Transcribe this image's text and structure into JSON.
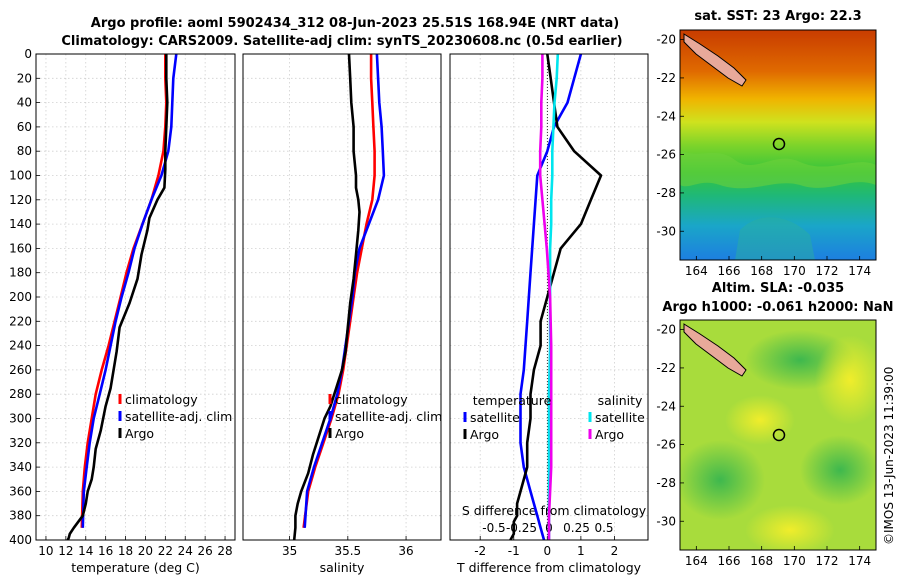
{
  "title_line1": "Argo profile: aoml 5902434_312 08-Jun-2023 25.51S 168.94E (NRT data)",
  "title_line2": "Climatology: CARS2009. Satellite-adj clim: synTS_20230608.nc (0.5d earlier)",
  "credit": "©IMOS 13-Jun-2023 11:39:00",
  "colors": {
    "climatology": "#ff0000",
    "satellite": "#0000ff",
    "argo": "#000000",
    "sat_salinity": "#00e5ee",
    "argo_salinity": "#ee00ee"
  },
  "chart_data": [
    {
      "type": "line",
      "name": "temperature",
      "xlabel": "temperature (deg C)",
      "ylabel": "",
      "xlim": [
        9,
        29
      ],
      "ylim": [
        400,
        0
      ],
      "xticks": [
        "10",
        "12",
        "14",
        "16",
        "18",
        "20",
        "22",
        "24",
        "26",
        "28"
      ],
      "xtick_values": [
        10,
        12,
        14,
        16,
        18,
        20,
        22,
        24,
        26,
        28
      ],
      "yticks": [
        "0",
        "20",
        "40",
        "60",
        "80",
        "100",
        "120",
        "140",
        "160",
        "180",
        "200",
        "220",
        "240",
        "260",
        "280",
        "300",
        "320",
        "340",
        "360",
        "380",
        "400"
      ],
      "ytick_values": [
        0,
        20,
        40,
        60,
        80,
        100,
        120,
        140,
        160,
        180,
        200,
        220,
        240,
        260,
        280,
        300,
        320,
        340,
        360,
        380,
        400
      ],
      "grid": true,
      "legend": [
        "climatology",
        "satellite-adj. clim",
        "Argo"
      ],
      "series": [
        {
          "name": "climatology",
          "x": [
            22.0,
            22.0,
            22.1,
            22.0,
            21.8,
            21.3,
            20.6,
            19.7,
            18.8,
            18.1,
            17.5,
            16.9,
            16.3,
            15.6,
            15.0,
            14.6,
            14.2,
            13.9,
            13.7,
            13.6
          ],
          "y": [
            0,
            20,
            40,
            60,
            80,
            100,
            120,
            140,
            160,
            180,
            200,
            220,
            240,
            260,
            280,
            300,
            320,
            340,
            360,
            390
          ]
        },
        {
          "name": "satellite-adj. clim",
          "x": [
            23.1,
            22.8,
            22.7,
            22.6,
            22.3,
            21.6,
            20.6,
            19.7,
            18.9,
            18.3,
            17.6,
            17.0,
            16.5,
            16.0,
            15.4,
            14.8,
            14.4,
            14.1,
            13.8,
            13.7
          ],
          "y": [
            0,
            20,
            40,
            60,
            80,
            100,
            120,
            140,
            160,
            180,
            200,
            220,
            240,
            260,
            280,
            300,
            320,
            340,
            360,
            390
          ]
        },
        {
          "name": "Argo",
          "x": [
            22.1,
            22.1,
            22.2,
            22.1,
            22.0,
            22.0,
            21.9,
            21.2,
            20.4,
            20.2,
            19.6,
            19.2,
            18.4,
            17.4,
            17.1,
            16.8,
            16.5,
            16.0,
            15.5,
            15.0,
            14.8,
            14.6,
            14.2,
            14.0,
            13.7,
            12.8,
            12.4,
            12.3,
            12.2
          ],
          "y": [
            0,
            20,
            40,
            60,
            80,
            95,
            110,
            120,
            135,
            145,
            165,
            185,
            205,
            225,
            245,
            260,
            275,
            290,
            310,
            325,
            340,
            350,
            360,
            370,
            380,
            390,
            395,
            398,
            400
          ]
        }
      ]
    },
    {
      "type": "line",
      "name": "salinity",
      "xlabel": "salinity",
      "ylabel": "",
      "xlim": [
        34.6,
        36.3
      ],
      "ylim": [
        400,
        0
      ],
      "xticks": [
        "35",
        "35.5",
        "36"
      ],
      "xtick_values": [
        35,
        35.5,
        36
      ],
      "grid": true,
      "legend": [
        "climatology",
        "satellite-adj. clim",
        "Argo"
      ],
      "series": [
        {
          "name": "climatology",
          "x": [
            35.7,
            35.7,
            35.71,
            35.72,
            35.73,
            35.73,
            35.71,
            35.66,
            35.62,
            35.58,
            35.55,
            35.52,
            35.49,
            35.46,
            35.42,
            35.36,
            35.29,
            35.22,
            35.16,
            35.12
          ],
          "y": [
            0,
            20,
            40,
            60,
            80,
            100,
            120,
            140,
            160,
            180,
            200,
            220,
            240,
            260,
            280,
            300,
            320,
            340,
            360,
            390
          ]
        },
        {
          "name": "satellite-adj. clim",
          "x": [
            35.75,
            35.76,
            35.77,
            35.79,
            35.8,
            35.81,
            35.76,
            35.68,
            35.6,
            35.56,
            35.54,
            35.51,
            35.48,
            35.45,
            35.41,
            35.35,
            35.28,
            35.21,
            35.15,
            35.13
          ],
          "y": [
            0,
            20,
            40,
            60,
            80,
            100,
            120,
            140,
            160,
            180,
            200,
            220,
            240,
            260,
            280,
            300,
            320,
            340,
            360,
            390
          ]
        },
        {
          "name": "Argo",
          "x": [
            35.51,
            35.52,
            35.53,
            35.55,
            35.55,
            35.57,
            35.57,
            35.59,
            35.6,
            35.59,
            35.57,
            35.55,
            35.52,
            35.5,
            35.48,
            35.45,
            35.4,
            35.35,
            35.3,
            35.25,
            35.2,
            35.16,
            35.1,
            35.07,
            35.05,
            35.05,
            35.04
          ],
          "y": [
            0,
            20,
            40,
            60,
            80,
            100,
            110,
            120,
            130,
            145,
            165,
            185,
            205,
            225,
            245,
            260,
            275,
            290,
            300,
            315,
            330,
            345,
            360,
            370,
            380,
            390,
            400
          ]
        }
      ]
    },
    {
      "type": "line",
      "name": "difference",
      "xlabel": "T difference from climatology",
      "x2label": "S difference from climatology",
      "xlim": [
        -2.9,
        3.0
      ],
      "ylim": [
        400,
        0
      ],
      "xticks": [
        "-2",
        "-1",
        "0",
        "1",
        "2"
      ],
      "xtick_values": [
        -2,
        -1,
        0,
        1,
        2
      ],
      "x2lim": [
        -0.9,
        0.9
      ],
      "x2ticks": [
        "-0.5",
        "-0.25",
        "0",
        "0.25",
        "0.5"
      ],
      "x2tick_values": [
        -0.5,
        -0.25,
        0,
        0.25,
        0.5
      ],
      "grid": true,
      "legend_left_title": "temperature",
      "legend_right_title": "salinity",
      "legend": [
        "satellite",
        "Argo",
        "satellite",
        "Argo"
      ],
      "series": [
        {
          "name": "temperature satellite",
          "axis": "T",
          "x": [
            1.0,
            0.8,
            0.6,
            0.4,
            0.2,
            0.0,
            -0.3,
            -0.4,
            -0.5,
            -0.6,
            -0.7,
            -0.8,
            -0.8,
            -0.8,
            -0.7,
            -0.6,
            -0.5,
            -0.4,
            -0.3,
            -0.2,
            -0.1
          ],
          "y": [
            0,
            20,
            40,
            50,
            60,
            80,
            100,
            140,
            180,
            220,
            260,
            280,
            300,
            320,
            340,
            350,
            360,
            370,
            380,
            390,
            400
          ]
        },
        {
          "name": "temperature Argo",
          "axis": "T",
          "x": [
            0.0,
            0.1,
            0.2,
            0.3,
            0.8,
            1.6,
            1.3,
            1.0,
            0.4,
            0.2,
            0.0,
            -0.2,
            -0.2,
            -0.4,
            -0.5,
            -0.5,
            -0.6,
            -0.6,
            -0.8,
            -0.9,
            -0.9,
            -1.0,
            -1.0,
            -1.1
          ],
          "y": [
            0,
            20,
            40,
            60,
            80,
            100,
            120,
            140,
            160,
            180,
            200,
            220,
            240,
            260,
            280,
            300,
            320,
            340,
            360,
            370,
            380,
            385,
            395,
            400
          ]
        },
        {
          "name": "salinity satellite",
          "axis": "S",
          "x": [
            0.08,
            0.07,
            0.05,
            0.04,
            0.03,
            0.03,
            0.02,
            0.02,
            0.01,
            0.01,
            0.01,
            0.0,
            0.0,
            0.0,
            0.0,
            0.0,
            0.0
          ],
          "y": [
            0,
            20,
            40,
            60,
            80,
            100,
            120,
            140,
            160,
            200,
            240,
            280,
            320,
            340,
            360,
            380,
            400
          ]
        },
        {
          "name": "salinity Argo",
          "axis": "S",
          "x": [
            -0.06,
            -0.06,
            -0.07,
            -0.07,
            -0.08,
            -0.08,
            -0.06,
            -0.04,
            -0.02,
            0.01,
            0.02,
            0.02,
            0.02,
            0.02,
            0.01,
            0.0,
            0.0
          ],
          "y": [
            0,
            20,
            40,
            60,
            80,
            100,
            120,
            140,
            160,
            200,
            240,
            280,
            320,
            340,
            360,
            380,
            400
          ]
        }
      ]
    },
    {
      "type": "heatmap",
      "name": "sst_map",
      "title": "sat. SST: 23 Argo: 22.3",
      "xlim": [
        163,
        175
      ],
      "ylim": [
        -31.5,
        -19.5
      ],
      "xticks": [
        "164",
        "166",
        "168",
        "170",
        "172",
        "174"
      ],
      "xtick_values": [
        164,
        166,
        168,
        170,
        172,
        174
      ],
      "yticks": [
        "-20",
        "-22",
        "-24",
        "-26",
        "-28",
        "-30"
      ],
      "ytick_values": [
        -20,
        -22,
        -24,
        -26,
        -28,
        -30
      ],
      "marker": {
        "lon": 168.94,
        "lat": -25.51
      }
    },
    {
      "type": "heatmap",
      "name": "sla_map",
      "title_line1": "Altim. SLA: -0.035",
      "title_line2": "Argo h1000: -0.061 h2000: NaN",
      "xlim": [
        163,
        175
      ],
      "ylim": [
        -31.5,
        -19.5
      ],
      "xticks": [
        "164",
        "166",
        "168",
        "170",
        "172",
        "174"
      ],
      "xtick_values": [
        164,
        166,
        168,
        170,
        172,
        174
      ],
      "yticks": [
        "-20",
        "-22",
        "-24",
        "-26",
        "-28",
        "-30"
      ],
      "ytick_values": [
        -20,
        -22,
        -24,
        -26,
        -28,
        -30
      ],
      "marker": {
        "lon": 168.94,
        "lat": -25.51
      }
    }
  ]
}
